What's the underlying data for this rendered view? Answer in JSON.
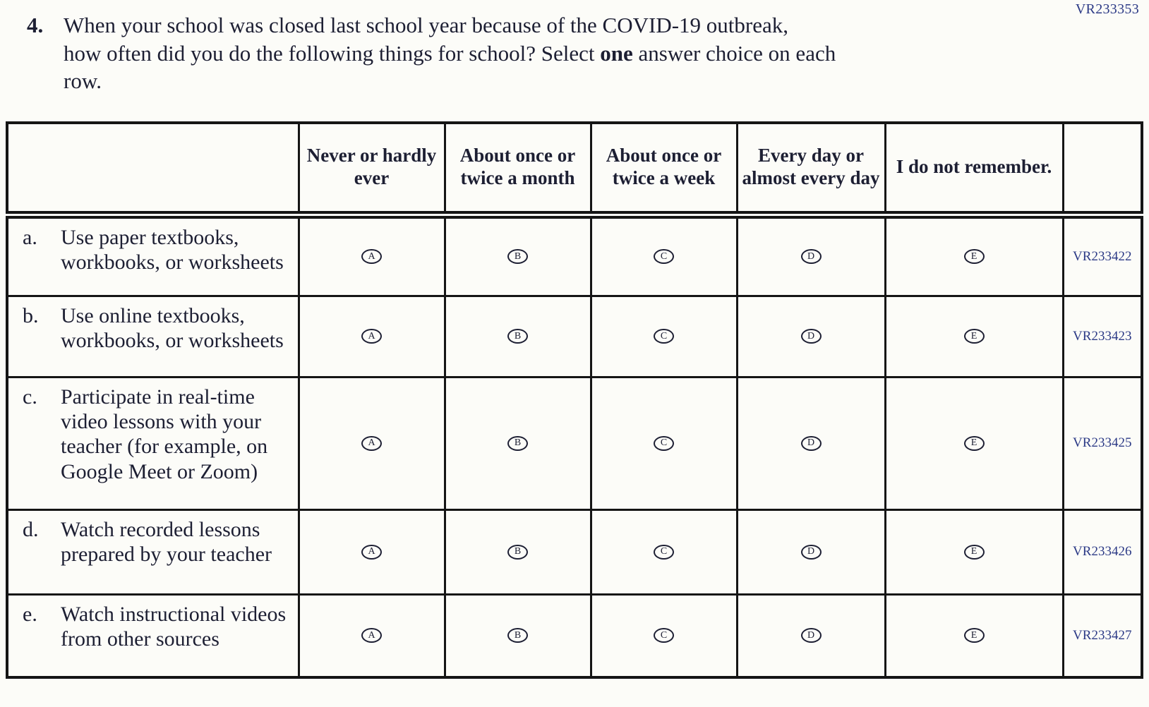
{
  "page": {
    "top_right_code": "VR233353",
    "question": {
      "number": "4.",
      "line1": "When your school was closed last school year because of the COVID-19 outbreak,",
      "line2_pre": "how often did you do the following things for school? Select ",
      "line2_bold": "one",
      "line2_post": " answer choice on each",
      "line3": "row."
    }
  },
  "table": {
    "column_headers": [
      "",
      "Never or hardly ever",
      "About once or twice a month",
      "About once or twice a week",
      "Every day or almost every day",
      "I do not remember.",
      ""
    ],
    "choice_letters": [
      "A",
      "B",
      "C",
      "D",
      "E"
    ],
    "rows": [
      {
        "item_letter": "a.",
        "label": "Use paper textbooks, workbooks, or worksheets",
        "code": "VR233422"
      },
      {
        "item_letter": "b.",
        "label": "Use online textbooks, workbooks, or worksheets",
        "code": "VR233423"
      },
      {
        "item_letter": "c.",
        "label": "Participate in real-time video lessons with your teacher (for example, on Google Meet or Zoom)",
        "code": "VR233425"
      },
      {
        "item_letter": "d.",
        "label": "Watch recorded lessons prepared by your teacher",
        "code": "VR233426"
      },
      {
        "item_letter": "e.",
        "label": "Watch instructional videos from other sources",
        "code": "VR233427"
      }
    ],
    "colors": {
      "text": "#1d1f33",
      "code_text": "#2c3a86",
      "border": "#151515",
      "background": "#fcfcf8"
    }
  }
}
